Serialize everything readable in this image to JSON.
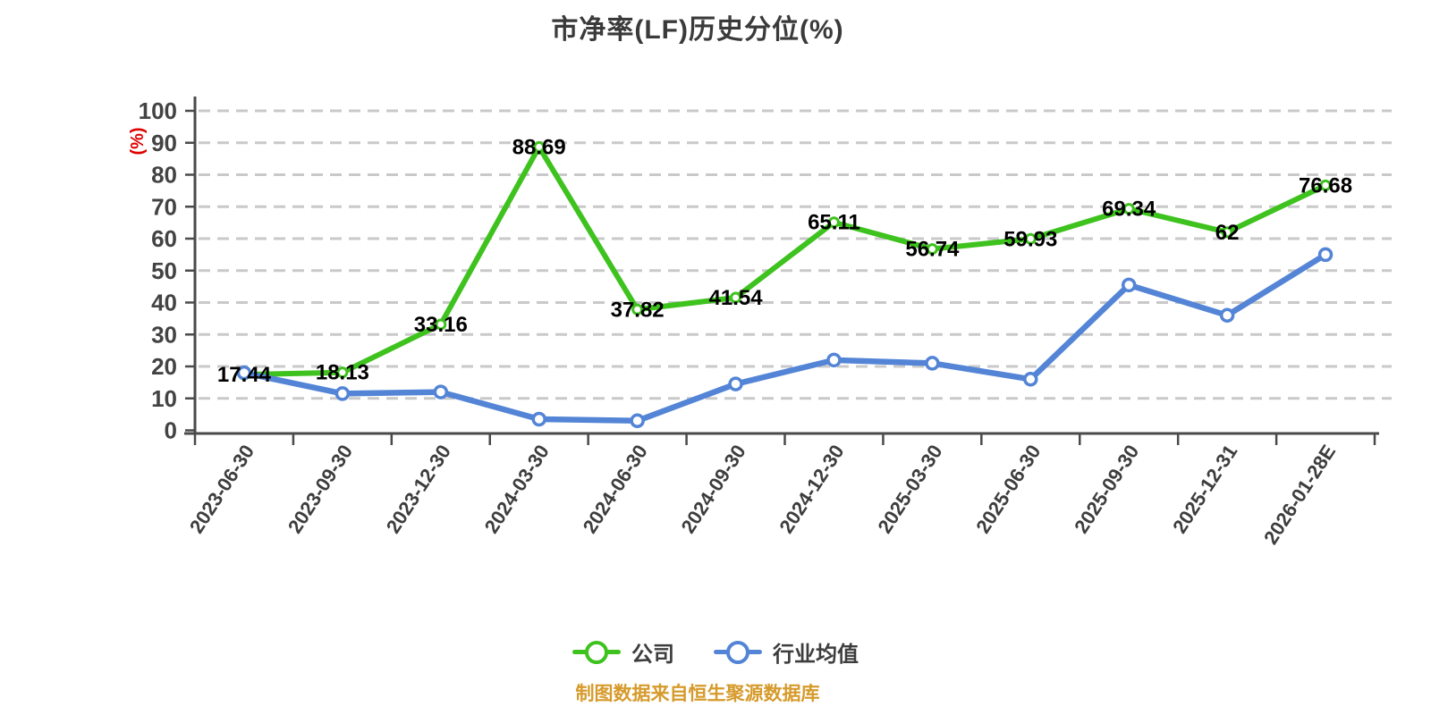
{
  "chart_data": {
    "type": "line",
    "title": "市净率(LF)历史分位(%)",
    "ylabel": "(%)",
    "ylabel_color": "#e00000",
    "xlabel": "",
    "ylim": [
      0,
      100
    ],
    "ytick_interval": 10,
    "grid": "horizontal-dashed",
    "legend_position": "bottom-center",
    "footer": "制图数据来自恒生聚源数据库",
    "footer_color": "#d69a2b",
    "categories": [
      "2023-06-30",
      "2023-09-30",
      "2023-12-30",
      "2024-03-30",
      "2024-06-30",
      "2024-09-30",
      "2024-12-30",
      "2025-03-30",
      "2025-06-30",
      "2025-09-30",
      "2025-12-31",
      "2026-01-28E"
    ],
    "series": [
      {
        "name": "公司",
        "color": "#3ec21e",
        "marker": "circle-white-fill",
        "labels_shown": true,
        "values": [
          17.44,
          18.13,
          33.16,
          88.69,
          37.82,
          41.54,
          65.11,
          56.74,
          59.93,
          69.34,
          62,
          76.68
        ]
      },
      {
        "name": "行业均值",
        "color": "#5384d6",
        "marker": "circle-white-fill",
        "labels_shown": false,
        "values": [
          18,
          11.5,
          12,
          3.5,
          3,
          14.5,
          22,
          21,
          16,
          45.5,
          36,
          55
        ]
      }
    ]
  }
}
